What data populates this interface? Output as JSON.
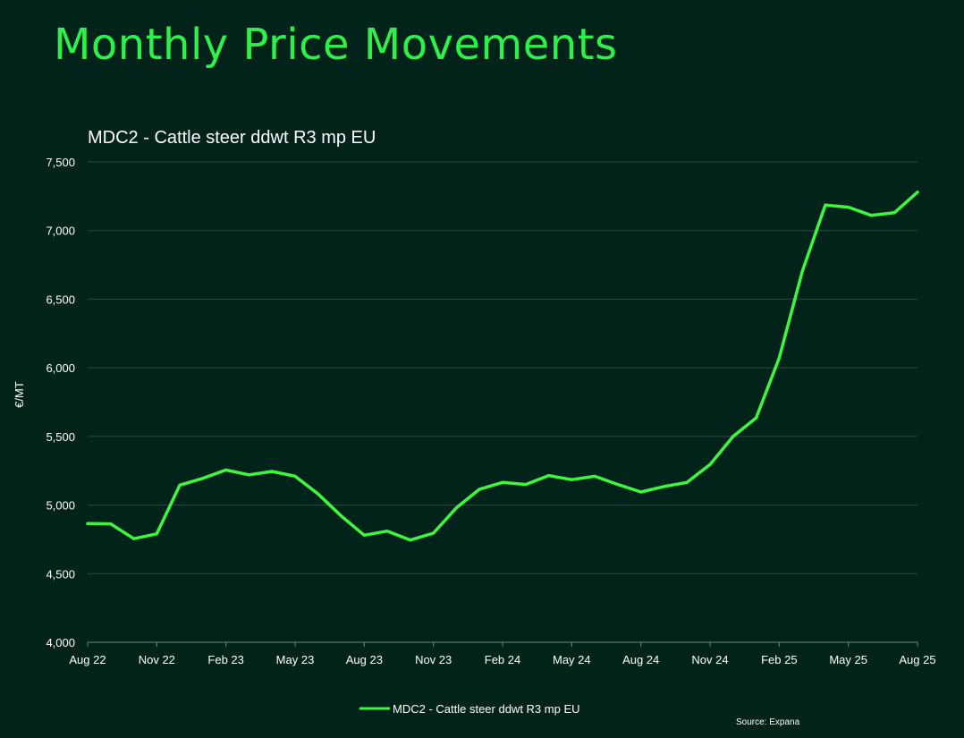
{
  "page_title": "Monthly Price Movements",
  "source": "Source: Expana",
  "chart_data": {
    "type": "line",
    "title": "MDC2 - Cattle steer ddwt R3 mp EU",
    "xlabel": "",
    "ylabel": "€/MT",
    "ylim": [
      4000,
      7500
    ],
    "yticks": [
      4000,
      4500,
      5000,
      5500,
      6000,
      6500,
      7000,
      7500
    ],
    "ytick_labels": [
      "4,000",
      "4,500",
      "5,000",
      "5,500",
      "6,000",
      "6,500",
      "7,000",
      "7,500"
    ],
    "x": [
      "Aug 22",
      "Sep 22",
      "Oct 22",
      "Nov 22",
      "Dec 22",
      "Jan 23",
      "Feb 23",
      "Mar 23",
      "Apr 23",
      "May 23",
      "Jun 23",
      "Jul 23",
      "Aug 23",
      "Sep 23",
      "Oct 23",
      "Nov 23",
      "Dec 23",
      "Jan 24",
      "Feb 24",
      "Mar 24",
      "Apr 24",
      "May 24",
      "Jun 24",
      "Jul 24",
      "Aug 24",
      "Sep 24",
      "Oct 24",
      "Nov 24",
      "Dec 24",
      "Jan 25",
      "Feb 25",
      "Mar 25",
      "Apr 25",
      "May 25",
      "Jun 25",
      "Jul 25",
      "Aug 25"
    ],
    "xtick_labels": [
      "Aug 22",
      "Nov 22",
      "Feb 23",
      "May 23",
      "Aug 23",
      "Nov 23",
      "Feb 24",
      "May 24",
      "Aug 24",
      "Nov 24",
      "Feb 25",
      "May 25",
      "Aug 25"
    ],
    "xtick_indices": [
      0,
      3,
      6,
      9,
      12,
      15,
      18,
      21,
      24,
      27,
      30,
      33,
      36
    ],
    "series": [
      {
        "name": "MDC2 - Cattle steer ddwt R3 mp EU",
        "color": "#3ff53f",
        "values": [
          4865,
          4863,
          4755,
          4790,
          5145,
          5195,
          5255,
          5220,
          5245,
          5210,
          5080,
          4920,
          4780,
          4810,
          4745,
          4795,
          4980,
          5115,
          5165,
          5150,
          5215,
          5185,
          5210,
          5150,
          5095,
          5135,
          5165,
          5295,
          5500,
          5635,
          6070,
          6700,
          7185,
          7170,
          7110,
          7130,
          7280
        ]
      }
    ],
    "grid": true,
    "legend": "bottom-center",
    "colors": {
      "background": "#01231a",
      "line": "#3ff53f",
      "grid": "#2e4a44",
      "title": "#2ff04a"
    }
  }
}
